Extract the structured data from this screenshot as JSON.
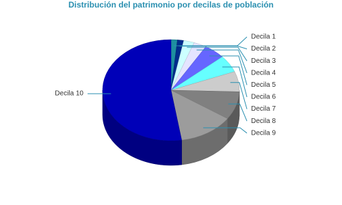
{
  "chart_data": {
    "type": "pie",
    "title": "Distribución del patrimonio por decilas de población",
    "categories": [
      "Decila 1",
      "Decila 2",
      "Decila 3",
      "Decila 4",
      "Decila 5",
      "Decila 6",
      "Decila 7",
      "Decila 8",
      "Decila 9",
      "Decila 10"
    ],
    "values": [
      1.5,
      1.5,
      2.5,
      3,
      5,
      5.5,
      6.5,
      9,
      13,
      52.5
    ],
    "colors": [
      "#1e8fa0",
      "#002c8c",
      "#ccffff",
      "#e4e4ff",
      "#6666ff",
      "#66ffff",
      "#cccccc",
      "#808080",
      "#9c9c9c",
      "#0000b8"
    ]
  }
}
